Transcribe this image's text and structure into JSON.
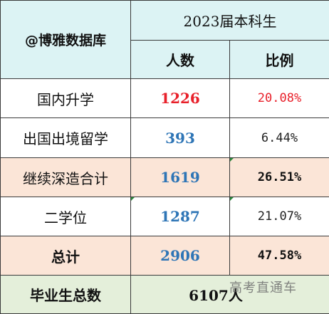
{
  "brand": "@博雅数据库",
  "year_header": "2023届本科生",
  "col_count_header": "人数",
  "col_ratio_header": "比例",
  "rows": [
    {
      "label": "国内升学",
      "count": "1226",
      "ratio": "20.08%"
    },
    {
      "label": "出国出境留学",
      "count": "393",
      "ratio": "6.44%"
    },
    {
      "label": "继续深造合计",
      "count": "1619",
      "ratio": "26.51%"
    },
    {
      "label": "二学位",
      "count": "1287",
      "ratio": "21.07%"
    },
    {
      "label": "总计",
      "count": "2906",
      "ratio": "47.58%"
    }
  ],
  "graduates": {
    "label": "毕业生总数",
    "value": "6107人"
  },
  "watermark": "高考直通车",
  "colors": {
    "header_bg": "#dcf3f4",
    "highlight_bg": "#fbe5d7",
    "footer_bg": "#e4efda",
    "red": "#e8202a",
    "blue": "#2e75b6"
  }
}
